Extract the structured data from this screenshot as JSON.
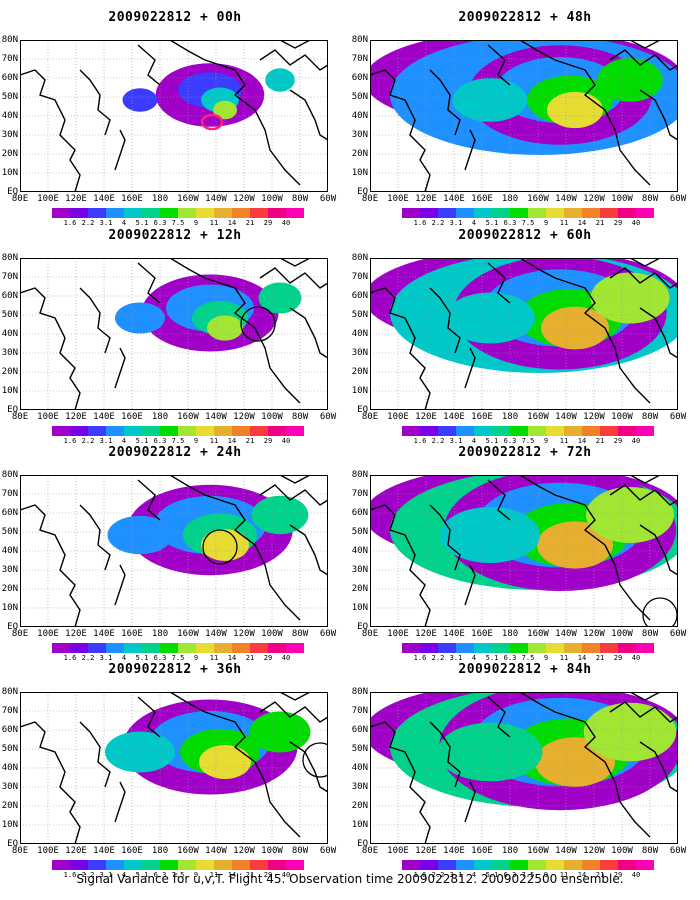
{
  "panels": [
    {
      "title": "2009022812 + 00h",
      "lead": "00h"
    },
    {
      "title": "2009022812 + 48h",
      "lead": "48h"
    },
    {
      "title": "2009022812 + 12h",
      "lead": "12h"
    },
    {
      "title": "2009022812 + 60h",
      "lead": "60h"
    },
    {
      "title": "2009022812 + 24h",
      "lead": "24h"
    },
    {
      "title": "2009022812 + 72h",
      "lead": "72h"
    },
    {
      "title": "2009022812 + 36h",
      "lead": "36h"
    },
    {
      "title": "2009022812 + 84h",
      "lead": "84h"
    }
  ],
  "lat_labels": [
    "80N",
    "70N",
    "60N",
    "50N",
    "40N",
    "30N",
    "20N",
    "10N",
    "EQ"
  ],
  "lon_labels": [
    "80E",
    "100E",
    "120E",
    "140E",
    "160E",
    "180",
    "160W",
    "140W",
    "120W",
    "100W",
    "80W",
    "60W"
  ],
  "colorbar": {
    "labels": [
      "1.6",
      "2.2",
      "3.1",
      "4",
      "5.1",
      "6.3",
      "7.5",
      "9",
      "11",
      "14",
      "21",
      "29",
      "40"
    ],
    "colors": [
      "#a000c8",
      "#7a00e6",
      "#3c3cff",
      "#1e90ff",
      "#00c8c8",
      "#00d28c",
      "#00dc00",
      "#a0e632",
      "#e6dc32",
      "#e6af2d",
      "#f08228",
      "#fa3c3c",
      "#f00082",
      "#ff00b4"
    ]
  },
  "caption": "Signal Variance for u,v,T. Flight 45. Observation time 2009022812. 2009022500 ensemble.",
  "icons": {
    "marker": "circle-target-icon"
  }
}
